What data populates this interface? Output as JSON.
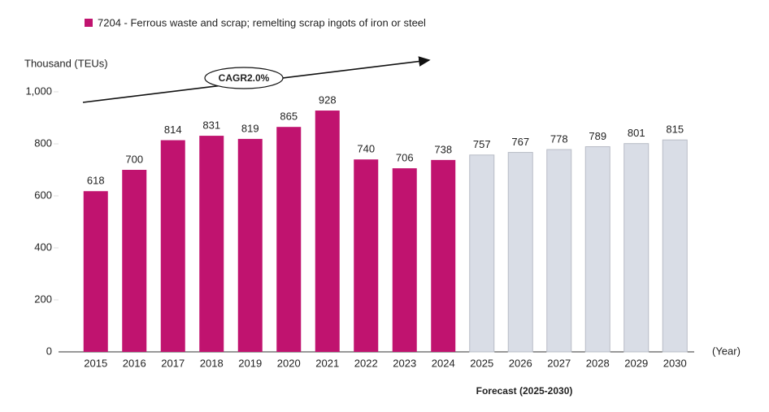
{
  "chart_data": {
    "type": "bar",
    "y_label": "Thousand (TEUs)",
    "x_label": "(Year)",
    "annotation": "CAGR2.0%",
    "forecast_label": "Forecast (2025-2030)",
    "categories": [
      "2015",
      "2016",
      "2017",
      "2018",
      "2019",
      "2020",
      "2021",
      "2022",
      "2023",
      "2024",
      "2025",
      "2026",
      "2027",
      "2028",
      "2029",
      "2030"
    ],
    "series": [
      {
        "name": "7204 - Ferrous waste and scrap; remelting scrap ingots of iron or steel",
        "color": "#c0136f",
        "values": [
          618,
          700,
          814,
          831,
          819,
          865,
          928,
          740,
          706,
          738,
          757,
          767,
          778,
          789,
          801,
          815
        ]
      }
    ],
    "bar_colors": [
      "#c0136f",
      "#c0136f",
      "#c0136f",
      "#c0136f",
      "#c0136f",
      "#c0136f",
      "#c0136f",
      "#c0136f",
      "#c0136f",
      "#c0136f",
      "#d9dde6",
      "#d9dde6",
      "#d9dde6",
      "#d9dde6",
      "#d9dde6",
      "#d9dde6"
    ],
    "ylim": [
      0,
      1000
    ],
    "yticks": [
      0,
      200,
      400,
      600,
      800,
      {
        "value": 1000,
        "label": "1,000"
      }
    ],
    "grid": true
  }
}
